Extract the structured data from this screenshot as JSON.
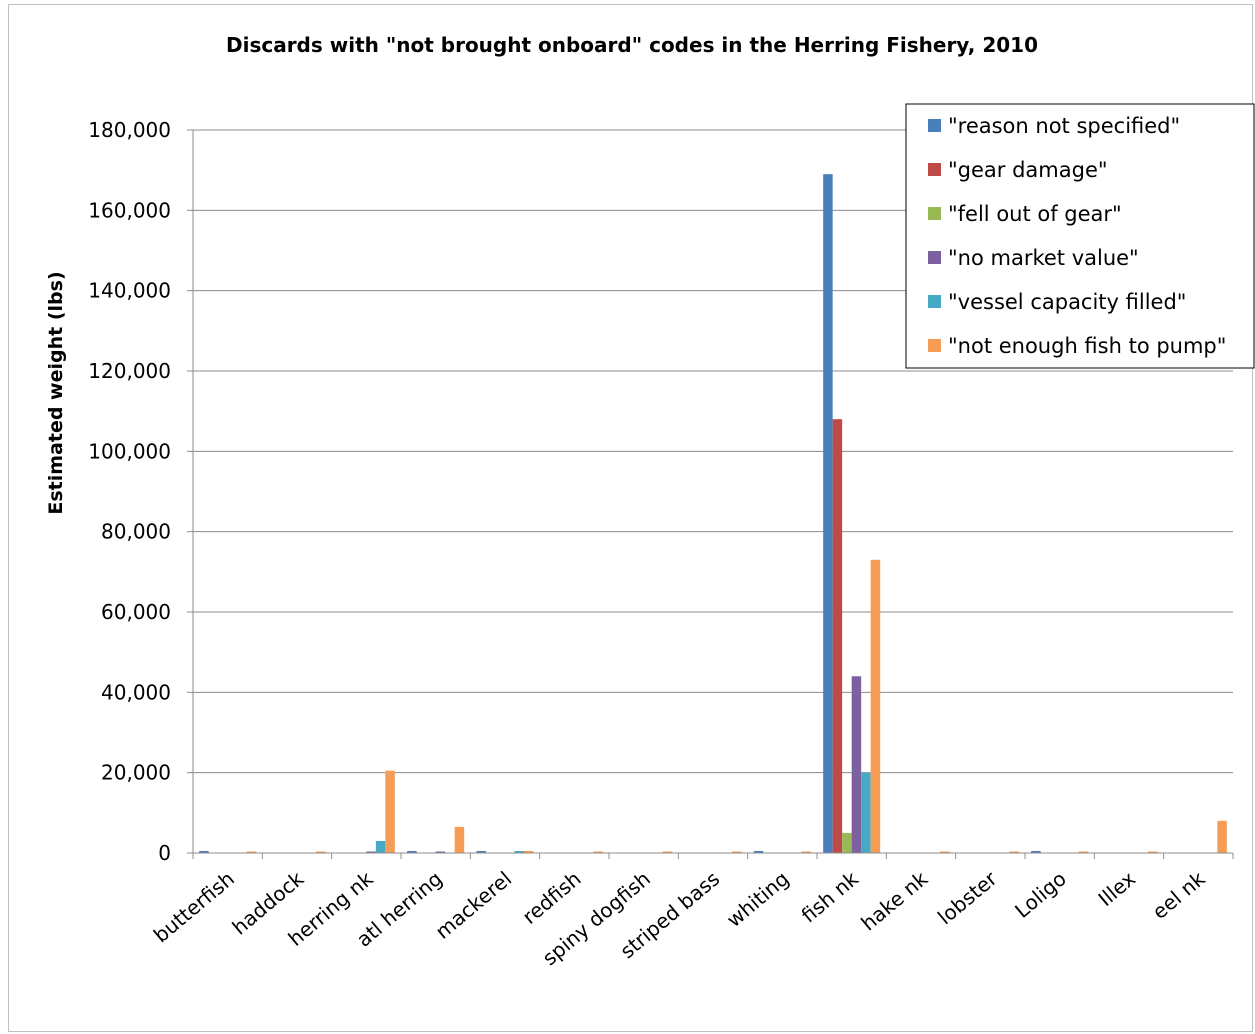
{
  "chart_data": {
    "type": "bar",
    "title": "Discards with \"not brought onboard\" codes in the Herring Fishery, 2010",
    "xlabel": "",
    "ylabel": "Estimated weight (lbs)",
    "ylim": [
      0,
      180000
    ],
    "y_ticks": [
      "0",
      "20,000",
      "40,000",
      "60,000",
      "80,000",
      "100,000",
      "120,000",
      "140,000",
      "160,000",
      "180,000"
    ],
    "grid": true,
    "legend_position": "top-right",
    "categories": [
      "butterfish",
      "haddock",
      "herring nk",
      "atl herring",
      "mackerel",
      "redfish",
      "spiny dogfish",
      "striped bass",
      "whiting",
      "fish nk",
      "hake nk",
      "lobster",
      "Loligo",
      "Illex",
      "eel nk"
    ],
    "series": [
      {
        "name": "\"reason not specified\"",
        "color": "#4a7ebb",
        "values": [
          500,
          0,
          0,
          500,
          500,
          0,
          0,
          0,
          500,
          169000,
          0,
          0,
          500,
          0,
          0
        ]
      },
      {
        "name": "\"gear damage\"",
        "color": "#be4b48",
        "values": [
          0,
          0,
          0,
          0,
          0,
          0,
          0,
          0,
          0,
          108000,
          0,
          0,
          0,
          0,
          0
        ]
      },
      {
        "name": "\"fell out of gear\"",
        "color": "#98b954",
        "values": [
          0,
          0,
          0,
          0,
          0,
          0,
          0,
          0,
          0,
          5000,
          0,
          0,
          0,
          0,
          0
        ]
      },
      {
        "name": "\"no market value\"",
        "color": "#7d60a0",
        "values": [
          0,
          0,
          300,
          300,
          0,
          0,
          0,
          0,
          0,
          44000,
          0,
          0,
          0,
          0,
          0
        ]
      },
      {
        "name": "\"vessel capacity filled\"",
        "color": "#46aac5",
        "values": [
          0,
          0,
          3000,
          0,
          500,
          0,
          0,
          0,
          0,
          20000,
          0,
          0,
          0,
          0,
          0
        ]
      },
      {
        "name": "\"not enough fish to pump\"",
        "color": "#f59d56",
        "values": [
          300,
          300,
          20500,
          6500,
          500,
          300,
          300,
          300,
          300,
          73000,
          300,
          300,
          300,
          300,
          8000
        ]
      }
    ]
  }
}
